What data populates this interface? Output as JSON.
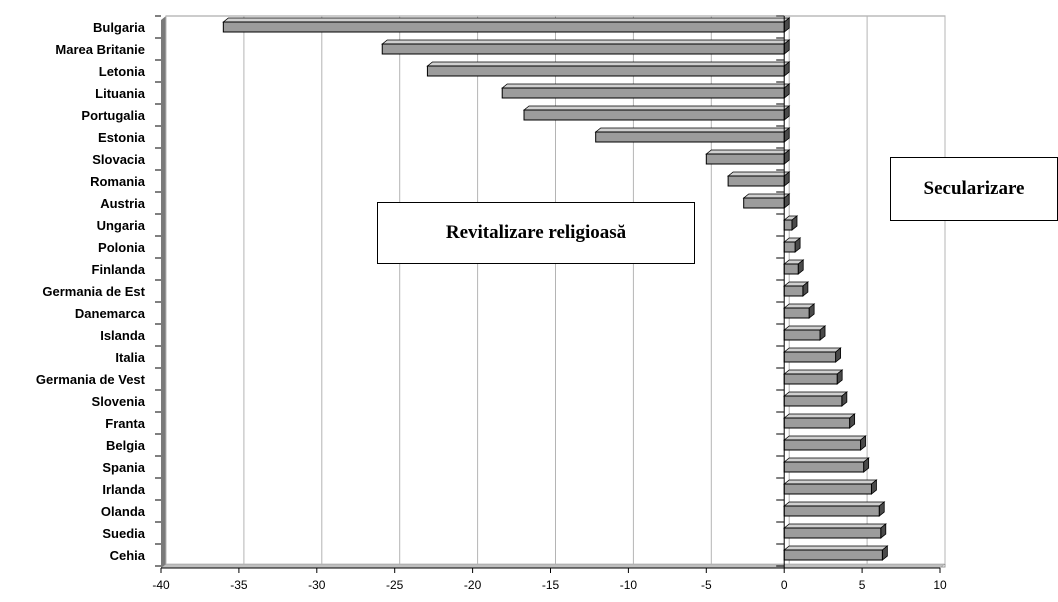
{
  "chart_data": {
    "type": "bar",
    "orientation": "horizontal",
    "categories": [
      "Bulgaria",
      "Marea Britanie",
      "Letonia",
      "Lituania",
      "Portugalia",
      "Estonia",
      "Slovacia",
      "Romania",
      "Austria",
      "Ungaria",
      "Polonia",
      "Finlanda",
      "Germania de Est",
      "Danemarca",
      "Islanda",
      "Italia",
      "Germania de Vest",
      "Slovenia",
      "Franta",
      "Belgia",
      "Spania",
      "Irlanda",
      "Olanda",
      "Suedia",
      "Cehia"
    ],
    "values": [
      -36,
      -25.8,
      -22.9,
      -18.1,
      -16.7,
      -12.1,
      -5,
      -3.6,
      -2.6,
      0.5,
      0.7,
      0.9,
      1.2,
      1.6,
      2.3,
      3.3,
      3.4,
      3.7,
      4.2,
      4.9,
      5.1,
      5.6,
      6.1,
      6.2,
      6.3
    ],
    "xlim": [
      -40,
      10
    ],
    "xticks": [
      -40,
      -35,
      -30,
      -25,
      -20,
      -15,
      -10,
      -5,
      0,
      5,
      10
    ],
    "grid": true,
    "colors": {
      "bar": "#9c9c9c",
      "bar_top": "#d0d0d0",
      "bar_side": "#4a4a4a",
      "grid": "#b4b4b4",
      "floor": "#bfbfbf",
      "wall_edge": "#7a7a7a"
    },
    "annotations": {
      "left": "Revitalizare religioasă",
      "right": "Secularizare"
    }
  }
}
